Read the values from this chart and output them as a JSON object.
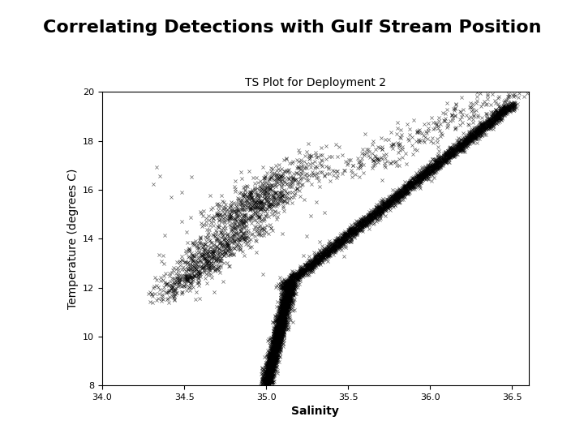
{
  "title": "Correlating Detections with Gulf Stream Position",
  "subtitle": "TS Plot for Deployment 2",
  "xlabel": "Salinity",
  "ylabel": "Temperature (degrees C)",
  "xlim": [
    34.0,
    36.6
  ],
  "ylim": [
    8,
    20
  ],
  "xticks": [
    34.0,
    34.5,
    35.0,
    35.5,
    36.0,
    36.5
  ],
  "yticks": [
    8,
    10,
    12,
    14,
    16,
    18,
    20
  ],
  "marker": "x",
  "color": "black",
  "markersize": 3,
  "linewidth": 0.5,
  "bg_color": "#ffffff",
  "title_fontsize": 16,
  "subtitle_fontsize": 10,
  "label_fontsize": 10,
  "tick_fontsize": 8
}
